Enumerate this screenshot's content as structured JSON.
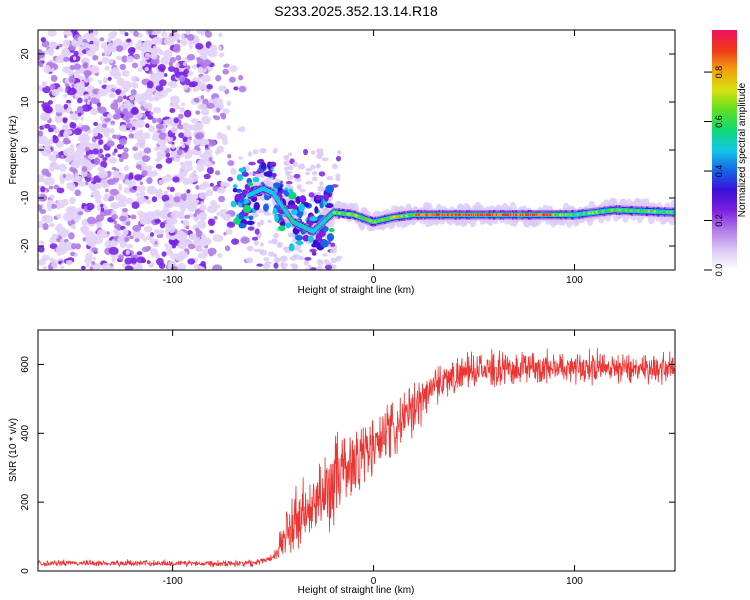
{
  "title": "S233.2025.352.13.14.R18",
  "chart_data": [
    {
      "type": "heatmap",
      "xlabel": "Height of straight line (km)",
      "ylabel": "Frequency (Hz)",
      "xlim": [
        -167,
        150
      ],
      "ylim": [
        -25,
        25
      ],
      "x_ticks": [
        -100,
        0,
        100
      ],
      "y_ticks": [
        -20,
        -10,
        0,
        10,
        20
      ],
      "colorbar": {
        "label": "Normalized spectral amplitude",
        "range": [
          0,
          0.97
        ],
        "ticks": [
          0.0,
          0.2,
          0.4,
          0.6,
          0.8
        ],
        "colormap": [
          "#ffffff",
          "#dcc8f5",
          "#b27ae8",
          "#7b1fe0",
          "#3a10d8",
          "#1468e8",
          "#14c8e8",
          "#10d870",
          "#60e020",
          "#d8e010",
          "#f0a010",
          "#f03818",
          "#f01060"
        ]
      },
      "noise_region": {
        "x": [
          -167,
          -62
        ],
        "y": [
          -25,
          25
        ],
        "level": 0.1
      },
      "ridge": [
        {
          "x": -65,
          "y": -10
        },
        {
          "x": -60,
          "y": -9
        },
        {
          "x": -55,
          "y": -8
        },
        {
          "x": -50,
          "y": -9
        },
        {
          "x": -45,
          "y": -12
        },
        {
          "x": -40,
          "y": -15
        },
        {
          "x": -30,
          "y": -17
        },
        {
          "x": -20,
          "y": -13
        },
        {
          "x": -10,
          "y": -13.5
        },
        {
          "x": 0,
          "y": -15
        },
        {
          "x": 10,
          "y": -14
        },
        {
          "x": 20,
          "y": -13.5
        },
        {
          "x": 40,
          "y": -13.5
        },
        {
          "x": 60,
          "y": -13.5
        },
        {
          "x": 80,
          "y": -13.5
        },
        {
          "x": 100,
          "y": -13.5
        },
        {
          "x": 120,
          "y": -12.5
        },
        {
          "x": 150,
          "y": -13
        }
      ]
    },
    {
      "type": "line",
      "xlabel": "Height of straight line (km)",
      "ylabel": "SNR (10 * v/v)",
      "xlim": [
        -167,
        150
      ],
      "ylim": [
        0,
        700
      ],
      "x_ticks": [
        -100,
        0,
        100
      ],
      "y_ticks": [
        0,
        200,
        400,
        600
      ],
      "color": "#ee3333",
      "trend": [
        [
          -167,
          22
        ],
        [
          -60,
          22
        ],
        [
          -50,
          40
        ],
        [
          -40,
          130
        ],
        [
          -30,
          170
        ],
        [
          -20,
          250
        ],
        [
          -10,
          310
        ],
        [
          0,
          350
        ],
        [
          10,
          400
        ],
        [
          20,
          460
        ],
        [
          30,
          540
        ],
        [
          50,
          580
        ],
        [
          100,
          590
        ],
        [
          150,
          585
        ]
      ],
      "noise_amplitude": [
        [
          -167,
          10
        ],
        [
          -50,
          12
        ],
        [
          -40,
          120
        ],
        [
          -20,
          150
        ],
        [
          0,
          120
        ],
        [
          20,
          90
        ],
        [
          40,
          60
        ],
        [
          150,
          55
        ]
      ]
    }
  ]
}
